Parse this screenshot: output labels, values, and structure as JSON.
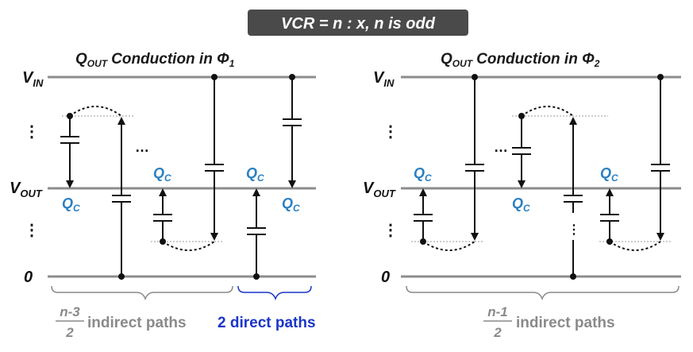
{
  "title": "VCR = n : x, n is odd",
  "left": {
    "heading_q": "Q",
    "heading_sub": "OUT",
    "heading_rest": "Conduction in Φ",
    "heading_phase": "1"
  },
  "right": {
    "heading_q": "Q",
    "heading_sub": "OUT",
    "heading_rest": "Conduction in Φ",
    "heading_phase": "2"
  },
  "rails": {
    "vin_main": "V",
    "vin_sub": "IN",
    "vout_main": "V",
    "vout_sub": "OUT",
    "zero": "0"
  },
  "charge_label": {
    "main": "Q",
    "sub": "C"
  },
  "ellipsis": "…",
  "vdots": "⋮",
  "brace_labels": {
    "left_num": "n-3",
    "left_den": "2",
    "left_text": "indirect paths",
    "direct_text": "2 direct paths",
    "right_num": "n-1",
    "right_den": "2",
    "right_text": "indirect paths"
  },
  "colors": {
    "rail": "#8c8c8c",
    "wire": "#111111",
    "charge_label": "#2a7fc0",
    "brace_gray": "#8a8a8a",
    "brace_blue": "#1a35c8",
    "title_bg": "#4a4a4a"
  }
}
